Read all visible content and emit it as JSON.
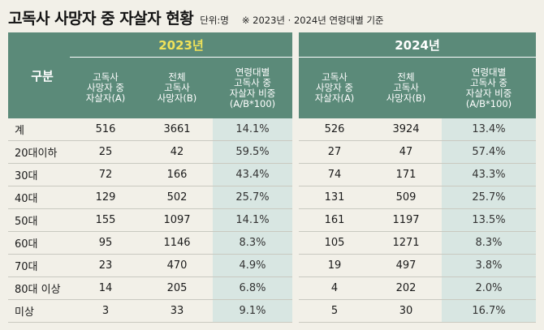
{
  "title": "고독사 사망자 중 자살자 현황",
  "unit": "단위:명",
  "note": "※ 2023년 · 2024년 연령대별 기준",
  "row_header": "구분",
  "years": [
    "2023년",
    "2024년"
  ],
  "columns": [
    [
      "고독사",
      "사망자 중",
      "자살자(A)"
    ],
    [
      "전체",
      "고독사",
      "사망자(B)"
    ],
    [
      "연령대별",
      "고독사 중",
      "자살자 비중",
      "(A/B*100)"
    ]
  ],
  "rows": [
    {
      "label": "계",
      "y2023": [
        "516",
        "3661",
        "14.1%"
      ],
      "y2024": [
        "526",
        "3924",
        "13.4%"
      ]
    },
    {
      "label": "20대이하",
      "y2023": [
        "25",
        "42",
        "59.5%"
      ],
      "y2024": [
        "27",
        "47",
        "57.4%"
      ]
    },
    {
      "label": "30대",
      "y2023": [
        "72",
        "166",
        "43.4%"
      ],
      "y2024": [
        "74",
        "171",
        "43.3%"
      ]
    },
    {
      "label": "40대",
      "y2023": [
        "129",
        "502",
        "25.7%"
      ],
      "y2024": [
        "131",
        "509",
        "25.7%"
      ]
    },
    {
      "label": "50대",
      "y2023": [
        "155",
        "1097",
        "14.1%"
      ],
      "y2024": [
        "161",
        "1197",
        "13.5%"
      ]
    },
    {
      "label": "60대",
      "y2023": [
        "95",
        "1146",
        "8.3%"
      ],
      "y2024": [
        "105",
        "1271",
        "8.3%"
      ]
    },
    {
      "label": "70대",
      "y2023": [
        "23",
        "470",
        "4.9%"
      ],
      "y2024": [
        "19",
        "497",
        "3.8%"
      ]
    },
    {
      "label": "80대 이상",
      "y2023": [
        "14",
        "205",
        "6.8%"
      ],
      "y2024": [
        "4",
        "202",
        "2.0%"
      ]
    },
    {
      "label": "미상",
      "y2023": [
        "3",
        "33",
        "9.1%"
      ],
      "y2024": [
        "5",
        "30",
        "16.7%"
      ]
    }
  ],
  "colors": {
    "header_bg": "#5b8a79",
    "year_2023": "#f0e25a",
    "highlight_col": "#d8e6e2",
    "page_bg": "#f2f0e8"
  }
}
